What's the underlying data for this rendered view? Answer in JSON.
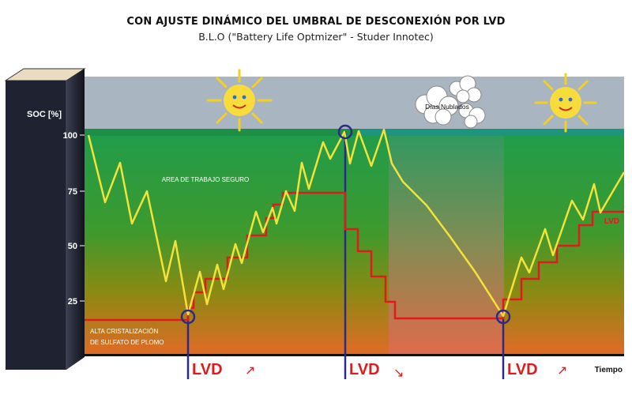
{
  "title": "CON AJUSTE DINÁMICO DEL UMBRAL DE DESCONEXIÓN POR LVD",
  "subtitle": "B.L.O (\"Battery Life Optmizer\" - Studer Innotec)",
  "y_axis_label": "SOC [%]",
  "x_axis_label": "Tiempo",
  "y_ticks": [
    "100",
    "75",
    "50",
    "25"
  ],
  "labels": {
    "safe_zone": "AREA DE TRABAJO SEGURO",
    "sulfation_line1": "ALTA CRISTALIZACIÓN",
    "sulfation_line2": "DE SULFATO DE PLOMO",
    "cloudy": "Días Nublados",
    "lvd_curve": "LVD"
  },
  "lvd_markers": [
    {
      "text": "LVD",
      "arrow": "up",
      "arrow_glyph": "↗"
    },
    {
      "text": "LVD",
      "arrow": "down",
      "arrow_glyph": "↘"
    },
    {
      "text": "LVD",
      "arrow": "up",
      "arrow_glyph": "↗"
    }
  ],
  "colors": {
    "sky": "#a9b5c1",
    "green_band": "#1f9a50",
    "zone_top": "#1e9a4a",
    "zone_bottom": "#e36c28",
    "soc_curve": "#f2e23a",
    "lvd_curve": "#e01b1b",
    "marker": "#2c2a86",
    "lvd_text": "#e01b1b",
    "battery": "#1f2230",
    "battery_cap": "#e9dcc0"
  }
}
